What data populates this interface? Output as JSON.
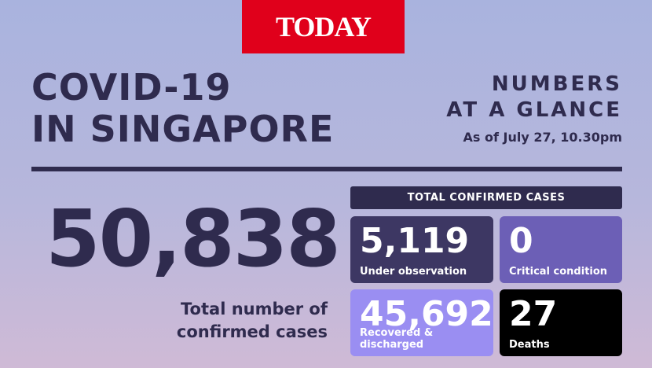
{
  "logo": "TODAY",
  "title": {
    "lines": [
      "COVID-19",
      "IN SINGAPORE"
    ]
  },
  "heading": {
    "lines": [
      "NUMBERS",
      "AT A GLANCE"
    ],
    "date": "As of July 27, 10.30pm"
  },
  "total": {
    "value": "50,838",
    "label_lines": [
      "Total number of",
      "confirmed cases"
    ]
  },
  "panel": {
    "header": "TOTAL CONFIRMED CASES",
    "cards": [
      {
        "value": "5,119",
        "label": "Under observation"
      },
      {
        "value": "0",
        "label": "Critical condition"
      },
      {
        "value": "45,692",
        "label": "Recovered & discharged"
      },
      {
        "value": "27",
        "label": "Deaths"
      }
    ]
  }
}
